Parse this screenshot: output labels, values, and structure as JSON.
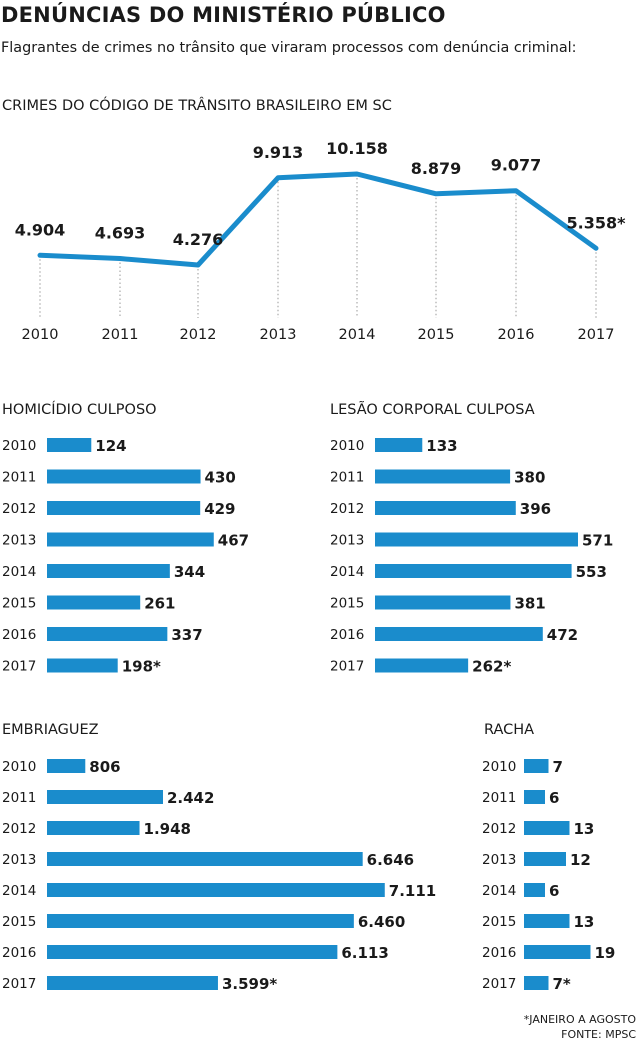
{
  "header": {
    "title": "DENÚNCIAS DO MINISTÉRIO PÚBLICO",
    "subtitle": "Flagrantes de crimes no trânsito que viraram processos com denúncia criminal:"
  },
  "colors": {
    "accent": "#1a8ccc",
    "guides": "#999999"
  },
  "footnote": {
    "note": "*JANEIRO A AGOSTO",
    "source": "FONTE: MPSC"
  },
  "chart_data": [
    {
      "type": "line",
      "title": "CRIMES DO CÓDIGO DE TRÂNSITO BRASILEIRO EM SC",
      "x": [
        "2010",
        "2011",
        "2012",
        "2013",
        "2014",
        "2015",
        "2016",
        "2017"
      ],
      "values": [
        4904,
        4693,
        4276,
        9913,
        10158,
        8879,
        9077,
        5358
      ],
      "labels": [
        "4.904",
        "4.693",
        "4.276",
        "9.913",
        "10.158",
        "8.879",
        "9.077",
        "5.358*"
      ]
    },
    {
      "type": "bar",
      "title": "HOMICÍDIO CULPOSO",
      "categories": [
        "2010",
        "2011",
        "2012",
        "2013",
        "2014",
        "2015",
        "2016",
        "2017"
      ],
      "values": [
        124,
        430,
        429,
        467,
        344,
        261,
        337,
        198
      ],
      "labels": [
        "124",
        "430",
        "429",
        "467",
        "344",
        "261",
        "337",
        "198*"
      ]
    },
    {
      "type": "bar",
      "title": "LESÃO CORPORAL CULPOSA",
      "categories": [
        "2010",
        "2011",
        "2012",
        "2013",
        "2014",
        "2015",
        "2016",
        "2017"
      ],
      "values": [
        133,
        380,
        396,
        571,
        553,
        381,
        472,
        262
      ],
      "labels": [
        "133",
        "380",
        "396",
        "571",
        "553",
        "381",
        "472",
        "262*"
      ]
    },
    {
      "type": "bar",
      "title": "EMBRIAGUEZ",
      "categories": [
        "2010",
        "2011",
        "2012",
        "2013",
        "2014",
        "2015",
        "2016",
        "2017"
      ],
      "values": [
        806,
        2442,
        1948,
        6646,
        7111,
        6460,
        6113,
        3599
      ],
      "labels": [
        "806",
        "2.442",
        "1.948",
        "6.646",
        "7.111",
        "6.460",
        "6.113",
        "3.599*"
      ]
    },
    {
      "type": "bar",
      "title": "RACHA",
      "categories": [
        "2010",
        "2011",
        "2012",
        "2013",
        "2014",
        "2015",
        "2016",
        "2017"
      ],
      "values": [
        7,
        6,
        13,
        12,
        6,
        13,
        19,
        7
      ],
      "labels": [
        "7",
        "6",
        "13",
        "12",
        "6",
        "13",
        "19",
        "7*"
      ]
    }
  ]
}
